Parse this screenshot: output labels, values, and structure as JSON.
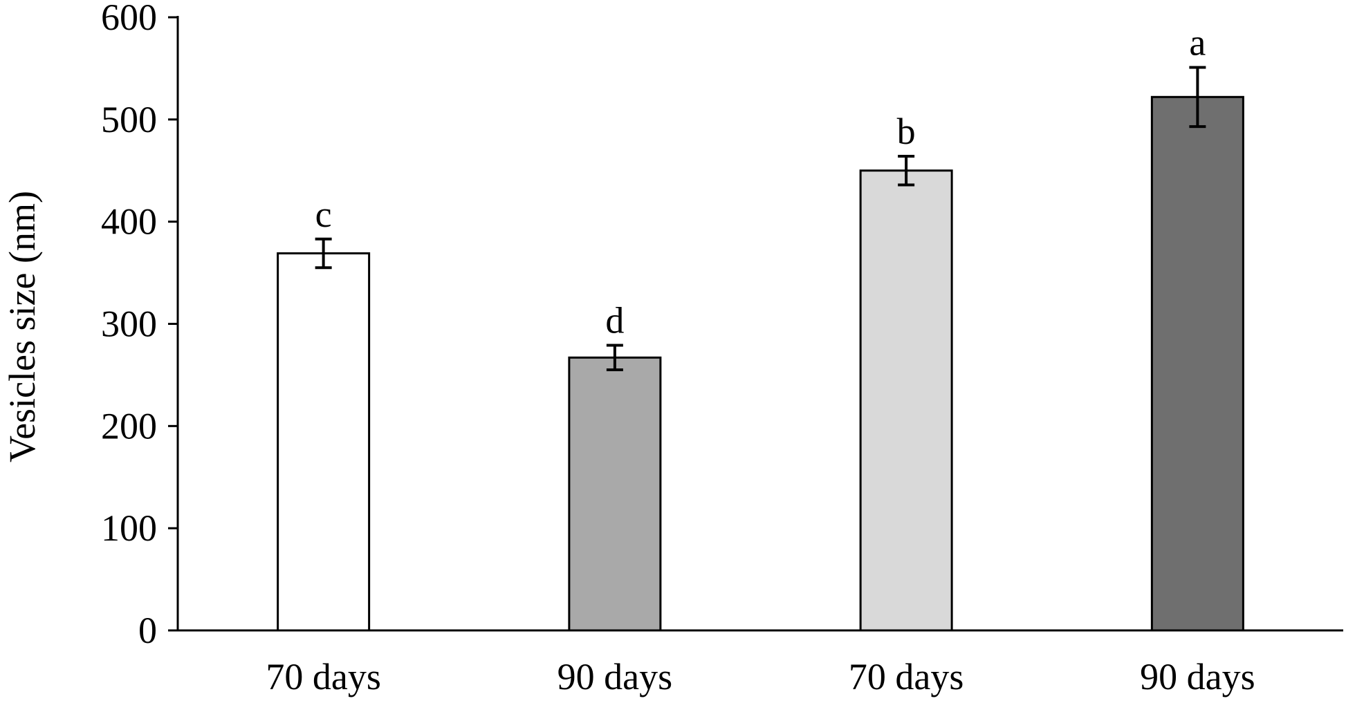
{
  "chart_data": {
    "type": "bar",
    "title": "",
    "xlabel": "",
    "ylabel": "Vesicles size (nm)",
    "ylim": [
      0,
      600
    ],
    "yticks": [
      0,
      100,
      200,
      300,
      400,
      500,
      600
    ],
    "grid": false,
    "legend": "none",
    "categories": [
      "70 days",
      "90 days",
      "70 days",
      "90 days"
    ],
    "values": [
      369,
      267,
      450,
      522
    ],
    "errors": [
      14,
      12,
      14,
      29
    ],
    "significance_labels": [
      "c",
      "d",
      "b",
      "a"
    ],
    "bar_colors": [
      "#ffffff",
      "#a9a9a9",
      "#d9d9d9",
      "#6f6f6f"
    ]
  }
}
